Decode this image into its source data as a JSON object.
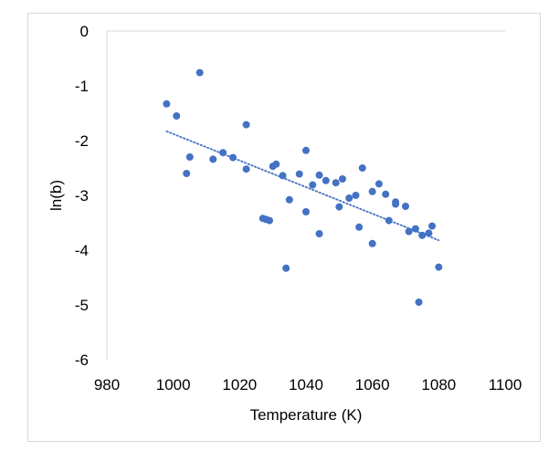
{
  "chart_data": {
    "type": "scatter",
    "title": "",
    "xlabel": "Temperature (K)",
    "ylabel": "ln(b)",
    "xlim": [
      980,
      1100
    ],
    "ylim": [
      -6,
      0
    ],
    "xticks": [
      980,
      1000,
      1020,
      1040,
      1060,
      1080,
      1100
    ],
    "yticks": [
      0,
      -1,
      -2,
      -3,
      -4,
      -5,
      -6
    ],
    "xtick_labels": [
      "980",
      "1000",
      "1020",
      "1040",
      "1060",
      "1080",
      "1100"
    ],
    "ytick_labels": [
      "0",
      "-1",
      "-2",
      "-3",
      "-4",
      "-5",
      "-6"
    ],
    "grid": false,
    "legend": "none",
    "marker_color": "#4472C4",
    "trendline": {
      "type": "linear",
      "style": "dotted",
      "color": "#4472C4",
      "x_range": [
        998,
        1080
      ],
      "y_at_start": -1.83,
      "y_at_end": -3.82
    },
    "series": [
      {
        "points": [
          [
            998,
            -1.33
          ],
          [
            1001,
            -1.55
          ],
          [
            1004,
            -2.6
          ],
          [
            1005,
            -2.3
          ],
          [
            1008,
            -0.76
          ],
          [
            1012,
            -2.34
          ],
          [
            1015,
            -2.22
          ],
          [
            1018,
            -2.31
          ],
          [
            1022,
            -1.71
          ],
          [
            1022,
            -2.52
          ],
          [
            1027,
            -3.42
          ],
          [
            1028,
            -3.44
          ],
          [
            1029,
            -3.46
          ],
          [
            1030,
            -2.47
          ],
          [
            1031,
            -2.43
          ],
          [
            1033,
            -2.64
          ],
          [
            1034,
            -4.33
          ],
          [
            1035,
            -3.08
          ],
          [
            1038,
            -2.61
          ],
          [
            1040,
            -2.18
          ],
          [
            1040,
            -3.3
          ],
          [
            1042,
            -2.81
          ],
          [
            1044,
            -2.63
          ],
          [
            1044,
            -3.7
          ],
          [
            1046,
            -2.73
          ],
          [
            1049,
            -2.77
          ],
          [
            1050,
            -3.21
          ],
          [
            1051,
            -2.7
          ],
          [
            1053,
            -3.05
          ],
          [
            1055,
            -3.0
          ],
          [
            1056,
            -3.58
          ],
          [
            1057,
            -2.5
          ],
          [
            1060,
            -2.93
          ],
          [
            1060,
            -3.88
          ],
          [
            1062,
            -2.79
          ],
          [
            1064,
            -2.98
          ],
          [
            1065,
            -3.46
          ],
          [
            1067,
            -3.12
          ],
          [
            1067,
            -3.16
          ],
          [
            1070,
            -3.2
          ],
          [
            1071,
            -3.66
          ],
          [
            1073,
            -3.61
          ],
          [
            1074,
            -4.95
          ],
          [
            1075,
            -3.73
          ],
          [
            1077,
            -3.69
          ],
          [
            1078,
            -3.56
          ],
          [
            1080,
            -4.31
          ]
        ]
      }
    ]
  }
}
